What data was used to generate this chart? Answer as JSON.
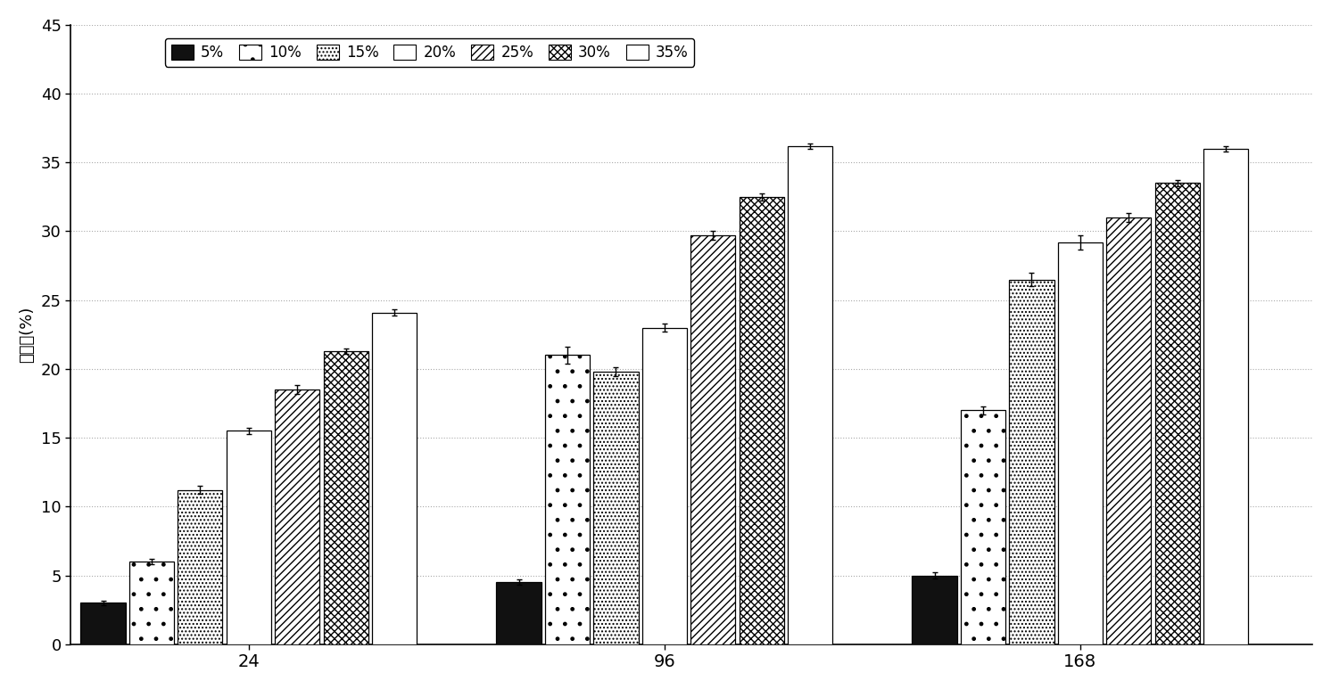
{
  "groups": [
    "24",
    "96",
    "168"
  ],
  "series_labels": [
    "5%",
    "10%",
    "15%",
    "20%",
    "25%",
    "30%",
    "35%"
  ],
  "values": [
    [
      3.0,
      6.0,
      11.2,
      15.5,
      18.5,
      21.3,
      24.1
    ],
    [
      4.5,
      21.0,
      19.8,
      23.0,
      29.7,
      32.5,
      36.2
    ],
    [
      5.0,
      17.0,
      26.5,
      29.2,
      31.0,
      33.5,
      36.0
    ]
  ],
  "errors": [
    [
      0.15,
      0.2,
      0.3,
      0.25,
      0.3,
      0.2,
      0.2
    ],
    [
      0.2,
      0.6,
      0.35,
      0.3,
      0.3,
      0.25,
      0.2
    ],
    [
      0.2,
      0.3,
      0.5,
      0.5,
      0.35,
      0.25,
      0.2
    ]
  ],
  "ylim": [
    0,
    45
  ],
  "yticks": [
    0,
    5,
    10,
    15,
    20,
    25,
    30,
    35,
    40,
    45
  ],
  "ylabel": "冇降率(%)",
  "bar_width": 0.09,
  "group_centers": [
    0.38,
    1.15,
    1.92
  ],
  "background_color": "#ffffff",
  "grid_color": "#aaaaaa"
}
